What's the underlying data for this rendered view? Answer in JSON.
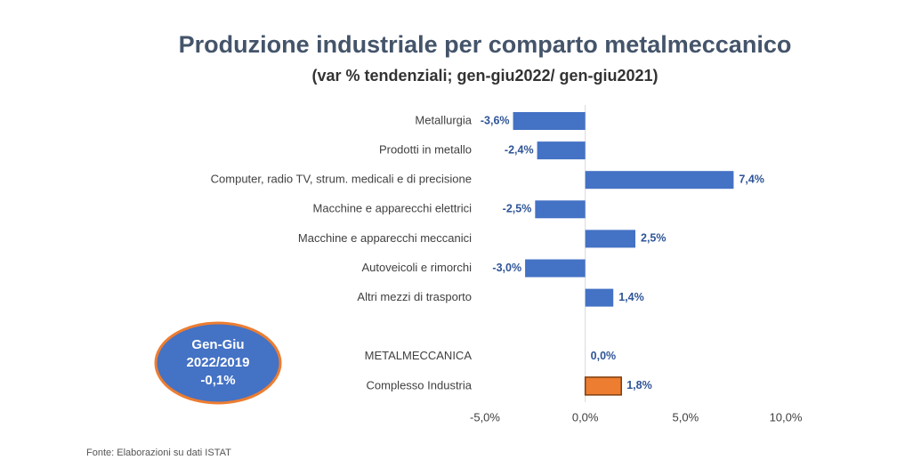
{
  "chart_data": {
    "type": "hbar",
    "title": "Produzione industriale per comparto metalmeccanico",
    "subtitle": "(var % tendenziali;  gen-giu2022/ gen-giu2021)",
    "categories": [
      "Metallurgia",
      "Prodotti in metallo",
      "Computer, radio TV, strum. medicali e di precisione",
      "Macchine e apparecchi elettrici",
      "Macchine e apparecchi meccanici",
      "Autoveicoli e rimorchi",
      "Altri mezzi di trasporto",
      null,
      "METALMECCANICA",
      "Complesso Industria"
    ],
    "values": [
      -3.6,
      -2.4,
      7.4,
      -2.5,
      2.5,
      -3.0,
      1.4,
      null,
      0.0,
      1.8
    ],
    "value_labels": [
      "-3,6%",
      "-2,4%",
      "7,4%",
      "-2,5%",
      "2,5%",
      "-3,0%",
      "1,4%",
      null,
      "0,0%",
      "1,8%"
    ],
    "colors": [
      "#4472c4",
      "#4472c4",
      "#4472c4",
      "#4472c4",
      "#4472c4",
      "#4472c4",
      "#4472c4",
      null,
      "#4472c4",
      "#ed7d31"
    ],
    "xlim": [
      -5,
      10
    ],
    "xticks": [
      {
        "value": -5,
        "label": "-5,0%"
      },
      {
        "value": 0,
        "label": "0,0%"
      },
      {
        "value": 5,
        "label": "5,0%"
      },
      {
        "value": 10,
        "label": "10,0%"
      }
    ],
    "annotation": [
      "Gen-Giu",
      "2022/2019",
      "-0,1%"
    ],
    "source": "Fonte: Elaborazioni su dati ISTAT"
  }
}
